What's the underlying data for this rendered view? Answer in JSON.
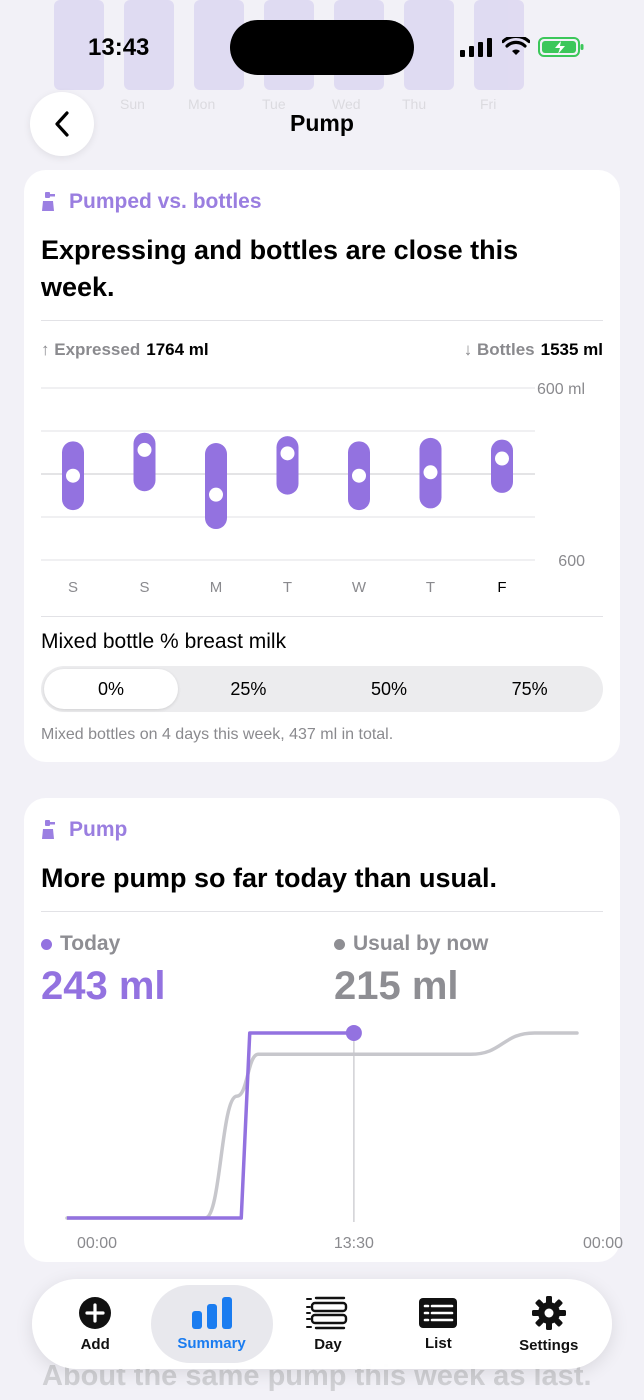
{
  "status_bar": {
    "time": "13:43"
  },
  "nav": {
    "title": "Pump"
  },
  "background_chart": {
    "day_labels": [
      "Sun",
      "Mon",
      "Tue",
      "Wed",
      "Thu",
      "Fri"
    ]
  },
  "pumped_card": {
    "label": "Pumped vs. bottles",
    "headline": "Expressing and bottles are close this week.",
    "expressed_label": "Expressed",
    "expressed_value": "1764 ml",
    "bottles_label": "Bottles",
    "bottles_value": "1535 ml",
    "mixed_title": "Mixed bottle % breast milk",
    "segments": [
      "0%",
      "25%",
      "50%",
      "75%"
    ],
    "selected_segment": "0%",
    "note": "Mixed bottles on 4 days this week, 437 ml in total.",
    "colors": {
      "accent": "#9b7fe2",
      "bar": "#9372e0"
    }
  },
  "pump_card": {
    "label": "Pump",
    "headline": "More pump so far today than usual.",
    "today_label": "Today",
    "today_value": "243 ml",
    "usual_label": "Usual by now",
    "usual_value": "215 ml",
    "colors": {
      "today": "#9372e0",
      "usual": "#8e8e93"
    }
  },
  "chart_data": [
    {
      "type": "range-bar",
      "categories": [
        "S",
        "S",
        "M",
        "T",
        "W",
        "T",
        "F"
      ],
      "highlighted_category": "F",
      "y_tick_labels": [
        "600 ml",
        "600"
      ],
      "series": [
        {
          "values": [
            {
              "low": 0.29,
              "high": 0.69,
              "dot": 0.49
            },
            {
              "low": 0.4,
              "high": 0.74,
              "dot": 0.64
            },
            {
              "low": 0.18,
              "high": 0.68,
              "dot": 0.38
            },
            {
              "low": 0.38,
              "high": 0.72,
              "dot": 0.62
            },
            {
              "low": 0.29,
              "high": 0.69,
              "dot": 0.49
            },
            {
              "low": 0.3,
              "high": 0.71,
              "dot": 0.51
            },
            {
              "low": 0.39,
              "high": 0.7,
              "dot": 0.59
            }
          ]
        }
      ]
    },
    {
      "type": "line",
      "x_tick_labels": [
        "00:00",
        "13:30",
        "00:00"
      ],
      "x_range_hours": [
        0,
        24
      ],
      "now_hour": 13.5,
      "series": [
        {
          "name": "Today",
          "points": [
            [
              0,
              0
            ],
            [
              8.2,
              0
            ],
            [
              8.6,
              243
            ],
            [
              13.5,
              243
            ]
          ]
        },
        {
          "name": "Usual by now",
          "points": [
            [
              0,
              0
            ],
            [
              6.5,
              0
            ],
            [
              8.0,
              160
            ],
            [
              9.0,
              215
            ],
            [
              19.0,
              215
            ],
            [
              22.0,
              243
            ],
            [
              24.0,
              243
            ]
          ]
        }
      ],
      "y_range": [
        0,
        260
      ]
    }
  ],
  "tab_bar": {
    "tabs": [
      {
        "label": "Add",
        "icon": "plus-circle-icon"
      },
      {
        "label": "Summary",
        "icon": "bar-chart-icon",
        "active": true
      },
      {
        "label": "Day",
        "icon": "day-timeline-icon"
      },
      {
        "label": "List",
        "icon": "list-icon"
      },
      {
        "label": "Settings",
        "icon": "gear-icon"
      }
    ]
  },
  "peek_headline": "About the same pump this week as last."
}
